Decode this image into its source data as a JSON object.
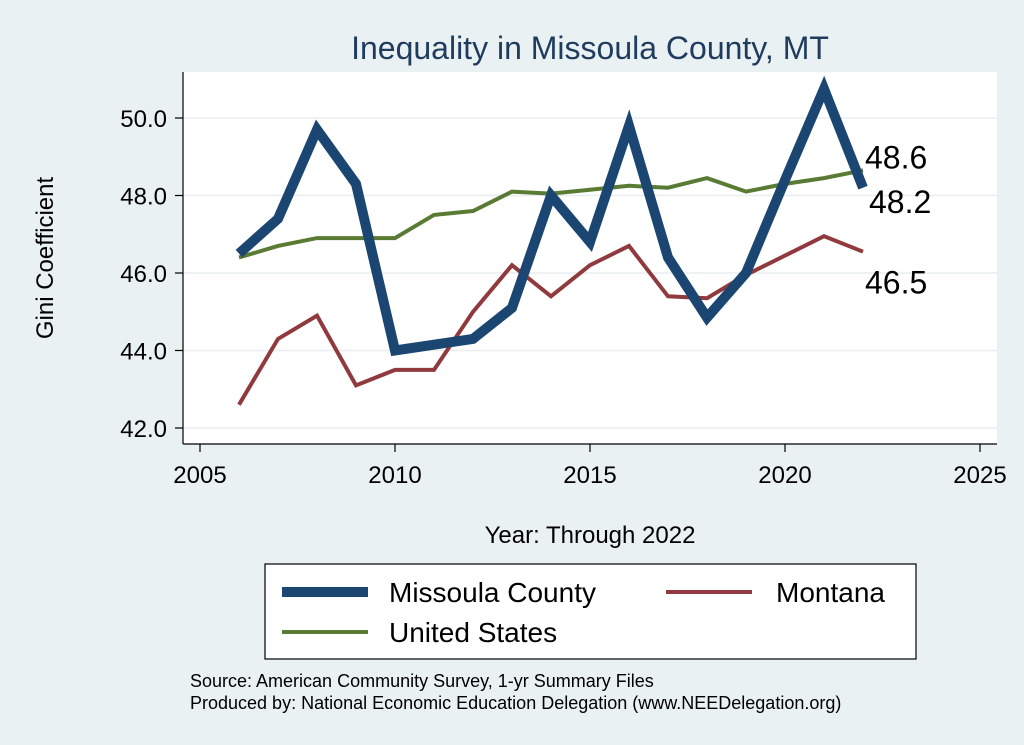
{
  "chart_data": {
    "type": "line",
    "title": "Inequality in Missoula County, MT",
    "xlabel": "Year: Through 2022",
    "ylabel": "Gini Coefficient",
    "xlim": [
      2005,
      2025
    ],
    "ylim": [
      42.0,
      51.2
    ],
    "xticks": [
      2005,
      2010,
      2015,
      2020,
      2025
    ],
    "yticks": [
      {
        "value": 42.0,
        "label": "42.0"
      },
      {
        "value": 44.0,
        "label": "44.0"
      },
      {
        "value": 46.0,
        "label": "46.0"
      },
      {
        "value": 48.0,
        "label": "48.0"
      },
      {
        "value": 50.0,
        "label": "50.0"
      }
    ],
    "grid": true,
    "legend_position": "bottom",
    "series": [
      {
        "name": "Missoula County",
        "color": "#1b4671",
        "x": [
          2006,
          2007,
          2008,
          2009,
          2010,
          2011,
          2012,
          2013,
          2014,
          2015,
          2016,
          2017,
          2018,
          2019,
          2020,
          2021,
          2022
        ],
        "y": [
          46.5,
          47.4,
          49.7,
          48.3,
          44.0,
          44.15,
          44.3,
          45.1,
          48.0,
          46.8,
          49.8,
          46.4,
          44.85,
          46.0,
          48.4,
          50.75,
          48.2
        ],
        "end_label": "48.2"
      },
      {
        "name": "Montana",
        "color": "#903a3e",
        "x": [
          2006,
          2007,
          2008,
          2009,
          2010,
          2011,
          2012,
          2013,
          2014,
          2015,
          2016,
          2017,
          2018,
          2019,
          2020,
          2021,
          2022
        ],
        "y": [
          42.6,
          44.3,
          44.9,
          43.1,
          43.5,
          43.5,
          45.0,
          46.2,
          45.4,
          46.2,
          46.7,
          45.4,
          45.35,
          45.95,
          46.45,
          46.95,
          46.55
        ],
        "end_label": "46.5"
      },
      {
        "name": "United States",
        "color": "#5a7b34",
        "x": [
          2006,
          2007,
          2008,
          2009,
          2010,
          2011,
          2012,
          2013,
          2014,
          2015,
          2016,
          2017,
          2018,
          2019,
          2020,
          2021,
          2022
        ],
        "y": [
          46.4,
          46.7,
          46.9,
          46.9,
          46.9,
          47.5,
          47.6,
          48.1,
          48.05,
          48.15,
          48.25,
          48.2,
          48.45,
          48.1,
          48.3,
          48.45,
          48.65
        ],
        "end_label": "48.6"
      }
    ]
  },
  "source": {
    "line1": "Source: American Community Survey, 1-yr Summary Files",
    "line2": "Produced by: National Economic Education Delegation (www.NEEDelegation.org)"
  }
}
